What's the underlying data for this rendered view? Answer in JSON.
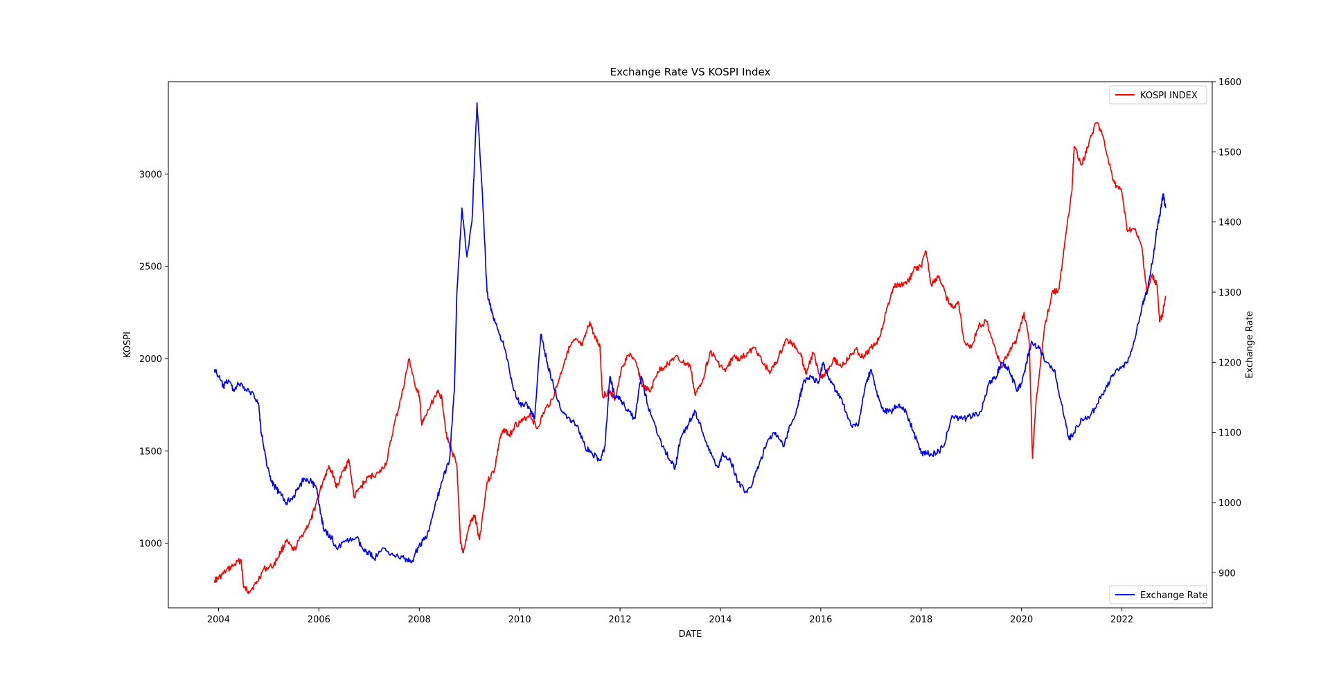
{
  "chart_data": {
    "type": "line",
    "title": "Exchange Rate VS KOSPI Index",
    "xlabel": "DATE",
    "ylabel_left": "KOSPI",
    "ylabel_right": "Exchange Rate",
    "grid": false,
    "xlim": [
      2003.0,
      2023.8
    ],
    "ylim_left": [
      650,
      3500
    ],
    "ylim_right": [
      850,
      1600
    ],
    "x_ticks": [
      2004,
      2006,
      2008,
      2010,
      2012,
      2014,
      2016,
      2018,
      2020,
      2022
    ],
    "x_tick_labels": [
      "2004",
      "2006",
      "2008",
      "2010",
      "2012",
      "2014",
      "2016",
      "2018",
      "2020",
      "2022"
    ],
    "y_left_ticks": [
      1000,
      1500,
      2000,
      2500,
      3000
    ],
    "y_left_tick_labels": [
      "1000",
      "1500",
      "2000",
      "2500",
      "3000"
    ],
    "y_right_ticks": [
      900,
      1000,
      1100,
      1200,
      1300,
      1400,
      1500,
      1600
    ],
    "y_right_tick_labels": [
      "900",
      "1000",
      "1100",
      "1200",
      "1300",
      "1400",
      "1500",
      "1600"
    ],
    "series": [
      {
        "name": "KOSPI INDEX",
        "axis": "left",
        "color": "#ff0000",
        "legend": "upper right",
        "points": [
          [
            2003.92,
            800
          ],
          [
            2004.0,
            810
          ],
          [
            2004.15,
            850
          ],
          [
            2004.3,
            880
          ],
          [
            2004.45,
            910
          ],
          [
            2004.5,
            760
          ],
          [
            2004.6,
            740
          ],
          [
            2004.75,
            780
          ],
          [
            2004.9,
            860
          ],
          [
            2005.1,
            880
          ],
          [
            2005.25,
            960
          ],
          [
            2005.35,
            1010
          ],
          [
            2005.5,
            960
          ],
          [
            2005.7,
            1060
          ],
          [
            2005.85,
            1130
          ],
          [
            2005.95,
            1220
          ],
          [
            2006.1,
            1350
          ],
          [
            2006.2,
            1420
          ],
          [
            2006.3,
            1360
          ],
          [
            2006.35,
            1300
          ],
          [
            2006.5,
            1400
          ],
          [
            2006.6,
            1450
          ],
          [
            2006.7,
            1250
          ],
          [
            2006.85,
            1310
          ],
          [
            2007.0,
            1360
          ],
          [
            2007.2,
            1380
          ],
          [
            2007.35,
            1440
          ],
          [
            2007.5,
            1640
          ],
          [
            2007.65,
            1800
          ],
          [
            2007.8,
            2000
          ],
          [
            2007.9,
            1870
          ],
          [
            2008.0,
            1800
          ],
          [
            2008.05,
            1640
          ],
          [
            2008.15,
            1700
          ],
          [
            2008.35,
            1820
          ],
          [
            2008.45,
            1790
          ],
          [
            2008.55,
            1570
          ],
          [
            2008.65,
            1500
          ],
          [
            2008.75,
            1420
          ],
          [
            2008.82,
            1000
          ],
          [
            2008.88,
            950
          ],
          [
            2009.0,
            1100
          ],
          [
            2009.1,
            1150
          ],
          [
            2009.2,
            1020
          ],
          [
            2009.35,
            1330
          ],
          [
            2009.5,
            1400
          ],
          [
            2009.6,
            1560
          ],
          [
            2009.7,
            1620
          ],
          [
            2009.8,
            1580
          ],
          [
            2009.9,
            1640
          ],
          [
            2010.05,
            1660
          ],
          [
            2010.2,
            1700
          ],
          [
            2010.35,
            1620
          ],
          [
            2010.5,
            1720
          ],
          [
            2010.65,
            1780
          ],
          [
            2010.8,
            1900
          ],
          [
            2010.95,
            2040
          ],
          [
            2011.1,
            2100
          ],
          [
            2011.25,
            2070
          ],
          [
            2011.4,
            2200
          ],
          [
            2011.5,
            2110
          ],
          [
            2011.6,
            2070
          ],
          [
            2011.65,
            1800
          ],
          [
            2011.8,
            1820
          ],
          [
            2011.9,
            1780
          ],
          [
            2012.05,
            1960
          ],
          [
            2012.2,
            2030
          ],
          [
            2012.35,
            1950
          ],
          [
            2012.45,
            1850
          ],
          [
            2012.6,
            1820
          ],
          [
            2012.75,
            1930
          ],
          [
            2012.9,
            1960
          ],
          [
            2013.1,
            2010
          ],
          [
            2013.25,
            1980
          ],
          [
            2013.4,
            1960
          ],
          [
            2013.5,
            1800
          ],
          [
            2013.65,
            1890
          ],
          [
            2013.8,
            2040
          ],
          [
            2013.95,
            1980
          ],
          [
            2014.1,
            1930
          ],
          [
            2014.25,
            2010
          ],
          [
            2014.4,
            2000
          ],
          [
            2014.55,
            2030
          ],
          [
            2014.7,
            2060
          ],
          [
            2014.85,
            1970
          ],
          [
            2015.0,
            1930
          ],
          [
            2015.15,
            2000
          ],
          [
            2015.3,
            2100
          ],
          [
            2015.45,
            2080
          ],
          [
            2015.6,
            2030
          ],
          [
            2015.7,
            1920
          ],
          [
            2015.85,
            2030
          ],
          [
            2016.0,
            1900
          ],
          [
            2016.1,
            1920
          ],
          [
            2016.25,
            2000
          ],
          [
            2016.4,
            1960
          ],
          [
            2016.55,
            2000
          ],
          [
            2016.7,
            2050
          ],
          [
            2016.85,
            2000
          ],
          [
            2017.0,
            2060
          ],
          [
            2017.15,
            2100
          ],
          [
            2017.3,
            2250
          ],
          [
            2017.45,
            2390
          ],
          [
            2017.6,
            2400
          ],
          [
            2017.75,
            2420
          ],
          [
            2017.85,
            2480
          ],
          [
            2018.0,
            2500
          ],
          [
            2018.1,
            2580
          ],
          [
            2018.2,
            2400
          ],
          [
            2018.35,
            2450
          ],
          [
            2018.5,
            2330
          ],
          [
            2018.6,
            2280
          ],
          [
            2018.75,
            2300
          ],
          [
            2018.85,
            2100
          ],
          [
            2019.0,
            2060
          ],
          [
            2019.15,
            2180
          ],
          [
            2019.3,
            2200
          ],
          [
            2019.45,
            2080
          ],
          [
            2019.6,
            1950
          ],
          [
            2019.75,
            2040
          ],
          [
            2019.9,
            2100
          ],
          [
            2020.05,
            2250
          ],
          [
            2020.15,
            2100
          ],
          [
            2020.22,
            1460
          ],
          [
            2020.3,
            1800
          ],
          [
            2020.45,
            2150
          ],
          [
            2020.6,
            2350
          ],
          [
            2020.75,
            2380
          ],
          [
            2020.85,
            2600
          ],
          [
            2021.0,
            2900
          ],
          [
            2021.05,
            3150
          ],
          [
            2021.2,
            3050
          ],
          [
            2021.35,
            3180
          ],
          [
            2021.5,
            3280
          ],
          [
            2021.6,
            3220
          ],
          [
            2021.75,
            3050
          ],
          [
            2021.85,
            2950
          ],
          [
            2022.0,
            2900
          ],
          [
            2022.1,
            2700
          ],
          [
            2022.25,
            2700
          ],
          [
            2022.4,
            2600
          ],
          [
            2022.5,
            2350
          ],
          [
            2022.6,
            2450
          ],
          [
            2022.7,
            2400
          ],
          [
            2022.75,
            2200
          ],
          [
            2022.8,
            2230
          ],
          [
            2022.87,
            2340
          ]
        ]
      },
      {
        "name": "Exchange Rate",
        "axis": "right",
        "color": "#0000ff",
        "legend": "lower right",
        "points": [
          [
            2003.92,
            1190
          ],
          [
            2004.0,
            1180
          ],
          [
            2004.1,
            1165
          ],
          [
            2004.2,
            1175
          ],
          [
            2004.3,
            1160
          ],
          [
            2004.4,
            1170
          ],
          [
            2004.55,
            1160
          ],
          [
            2004.7,
            1155
          ],
          [
            2004.8,
            1140
          ],
          [
            2004.85,
            1100
          ],
          [
            2004.95,
            1060
          ],
          [
            2005.05,
            1030
          ],
          [
            2005.15,
            1020
          ],
          [
            2005.25,
            1010
          ],
          [
            2005.35,
            1000
          ],
          [
            2005.5,
            1010
          ],
          [
            2005.6,
            1020
          ],
          [
            2005.7,
            1035
          ],
          [
            2005.85,
            1030
          ],
          [
            2005.95,
            1020
          ],
          [
            2006.05,
            980
          ],
          [
            2006.1,
            960
          ],
          [
            2006.25,
            950
          ],
          [
            2006.35,
            935
          ],
          [
            2006.55,
            945
          ],
          [
            2006.75,
            950
          ],
          [
            2006.9,
            930
          ],
          [
            2007.0,
            930
          ],
          [
            2007.1,
            920
          ],
          [
            2007.3,
            935
          ],
          [
            2007.5,
            925
          ],
          [
            2007.7,
            920
          ],
          [
            2007.85,
            915
          ],
          [
            2008.0,
            940
          ],
          [
            2008.15,
            950
          ],
          [
            2008.3,
            990
          ],
          [
            2008.45,
            1030
          ],
          [
            2008.6,
            1060
          ],
          [
            2008.7,
            1160
          ],
          [
            2008.75,
            1300
          ],
          [
            2008.85,
            1420
          ],
          [
            2008.95,
            1350
          ],
          [
            2009.05,
            1400
          ],
          [
            2009.15,
            1570
          ],
          [
            2009.25,
            1450
          ],
          [
            2009.35,
            1300
          ],
          [
            2009.45,
            1270
          ],
          [
            2009.55,
            1250
          ],
          [
            2009.7,
            1220
          ],
          [
            2009.85,
            1170
          ],
          [
            2010.0,
            1140
          ],
          [
            2010.15,
            1140
          ],
          [
            2010.3,
            1120
          ],
          [
            2010.42,
            1240
          ],
          [
            2010.55,
            1200
          ],
          [
            2010.7,
            1160
          ],
          [
            2010.85,
            1130
          ],
          [
            2011.0,
            1120
          ],
          [
            2011.15,
            1110
          ],
          [
            2011.3,
            1080
          ],
          [
            2011.45,
            1070
          ],
          [
            2011.6,
            1060
          ],
          [
            2011.7,
            1080
          ],
          [
            2011.8,
            1180
          ],
          [
            2011.9,
            1150
          ],
          [
            2012.0,
            1150
          ],
          [
            2012.15,
            1130
          ],
          [
            2012.3,
            1120
          ],
          [
            2012.42,
            1180
          ],
          [
            2012.55,
            1140
          ],
          [
            2012.7,
            1110
          ],
          [
            2012.85,
            1080
          ],
          [
            2013.0,
            1060
          ],
          [
            2013.1,
            1050
          ],
          [
            2013.2,
            1090
          ],
          [
            2013.35,
            1110
          ],
          [
            2013.5,
            1130
          ],
          [
            2013.65,
            1100
          ],
          [
            2013.8,
            1070
          ],
          [
            2013.95,
            1050
          ],
          [
            2014.05,
            1070
          ],
          [
            2014.2,
            1060
          ],
          [
            2014.35,
            1030
          ],
          [
            2014.5,
            1015
          ],
          [
            2014.65,
            1030
          ],
          [
            2014.8,
            1060
          ],
          [
            2014.95,
            1090
          ],
          [
            2015.1,
            1100
          ],
          [
            2015.25,
            1080
          ],
          [
            2015.4,
            1110
          ],
          [
            2015.55,
            1140
          ],
          [
            2015.65,
            1170
          ],
          [
            2015.8,
            1180
          ],
          [
            2015.95,
            1170
          ],
          [
            2016.05,
            1200
          ],
          [
            2016.15,
            1180
          ],
          [
            2016.3,
            1160
          ],
          [
            2016.45,
            1140
          ],
          [
            2016.6,
            1110
          ],
          [
            2016.75,
            1110
          ],
          [
            2016.9,
            1170
          ],
          [
            2017.0,
            1190
          ],
          [
            2017.1,
            1160
          ],
          [
            2017.25,
            1130
          ],
          [
            2017.4,
            1130
          ],
          [
            2017.55,
            1140
          ],
          [
            2017.7,
            1130
          ],
          [
            2017.85,
            1100
          ],
          [
            2018.0,
            1070
          ],
          [
            2018.15,
            1070
          ],
          [
            2018.3,
            1070
          ],
          [
            2018.45,
            1080
          ],
          [
            2018.6,
            1120
          ],
          [
            2018.75,
            1120
          ],
          [
            2018.9,
            1120
          ],
          [
            2019.05,
            1125
          ],
          [
            2019.2,
            1130
          ],
          [
            2019.35,
            1170
          ],
          [
            2019.5,
            1180
          ],
          [
            2019.6,
            1200
          ],
          [
            2019.75,
            1190
          ],
          [
            2019.9,
            1160
          ],
          [
            2020.0,
            1170
          ],
          [
            2020.1,
            1200
          ],
          [
            2020.2,
            1230
          ],
          [
            2020.35,
            1220
          ],
          [
            2020.5,
            1200
          ],
          [
            2020.65,
            1190
          ],
          [
            2020.8,
            1140
          ],
          [
            2020.95,
            1090
          ],
          [
            2021.05,
            1100
          ],
          [
            2021.2,
            1120
          ],
          [
            2021.35,
            1120
          ],
          [
            2021.5,
            1140
          ],
          [
            2021.65,
            1160
          ],
          [
            2021.8,
            1180
          ],
          [
            2021.95,
            1190
          ],
          [
            2022.1,
            1200
          ],
          [
            2022.25,
            1230
          ],
          [
            2022.4,
            1280
          ],
          [
            2022.5,
            1300
          ],
          [
            2022.6,
            1340
          ],
          [
            2022.7,
            1390
          ],
          [
            2022.78,
            1420
          ],
          [
            2022.82,
            1440
          ],
          [
            2022.87,
            1420
          ]
        ]
      }
    ]
  }
}
